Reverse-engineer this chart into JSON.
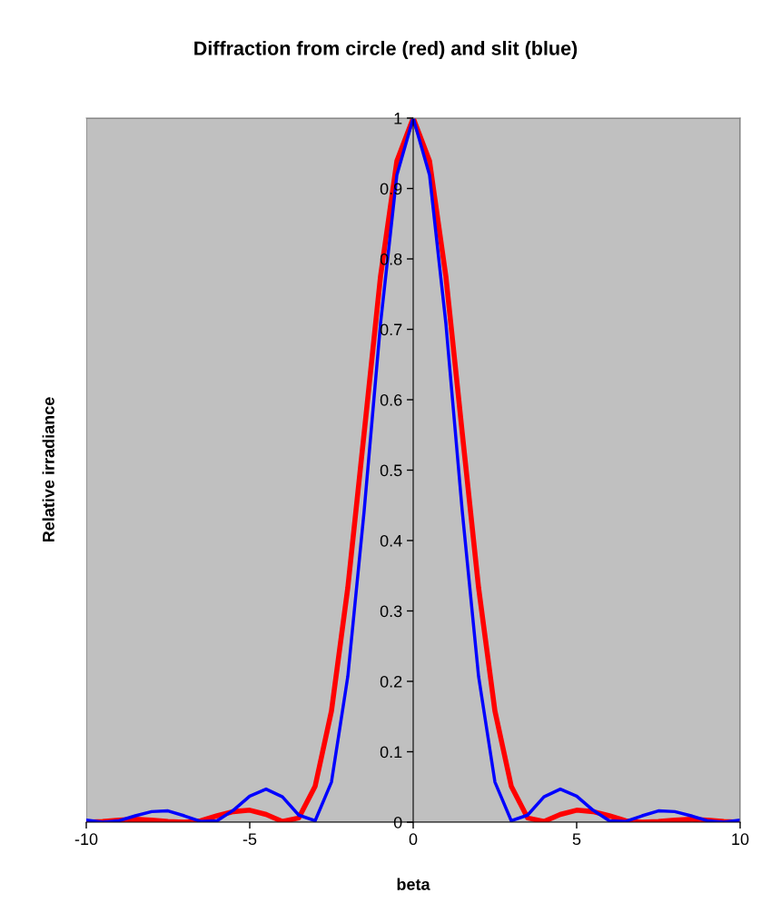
{
  "chart_data": {
    "type": "line",
    "title": "Diffraction from circle (red) and slit (blue)",
    "xlabel": "beta",
    "ylabel": "Relative irradiance",
    "x": [
      -10,
      -9.5,
      -9,
      -8.5,
      -8,
      -7.5,
      -7,
      -6.5,
      -6,
      -5.5,
      -5,
      -4.5,
      -4,
      -3.5,
      -3,
      -2.5,
      -2,
      -1.5,
      -1,
      -0.5,
      0,
      0.5,
      1,
      1.5,
      2,
      2.5,
      3,
      3.5,
      4,
      4.5,
      5,
      5.5,
      6,
      6.5,
      7,
      7.5,
      8,
      8.5,
      9,
      9.5,
      10
    ],
    "series": [
      {
        "color": "#ff0000",
        "values": [
          0,
          0.001,
          0.003,
          0.004,
          0.003,
          0.001,
          0,
          0.002,
          0.009,
          0.015,
          0.017,
          0.011,
          0.001,
          0.006,
          0.051,
          0.158,
          0.333,
          0.553,
          0.775,
          0.939,
          1,
          0.939,
          0.775,
          0.553,
          0.333,
          0.158,
          0.051,
          0.006,
          0.001,
          0.011,
          0.017,
          0.015,
          0.009,
          0.002,
          0,
          0.001,
          0.003,
          0.004,
          0.003,
          0.001,
          0
        ]
      },
      {
        "color": "#0000ff",
        "values": [
          0.003,
          0,
          0.002,
          0.009,
          0.015,
          0.016,
          0.009,
          0.001,
          0.002,
          0.017,
          0.037,
          0.047,
          0.036,
          0.01,
          0.002,
          0.057,
          0.207,
          0.442,
          0.708,
          0.919,
          1,
          0.919,
          0.708,
          0.442,
          0.207,
          0.057,
          0.002,
          0.01,
          0.036,
          0.047,
          0.037,
          0.017,
          0.002,
          0.001,
          0.009,
          0.016,
          0.015,
          0.009,
          0.002,
          0,
          0.003
        ]
      }
    ],
    "xlim": [
      -10,
      10
    ],
    "xticks": [
      -10,
      -5,
      0,
      5,
      10
    ],
    "ylim": [
      0,
      1
    ],
    "yticks": [
      0,
      0.1,
      0.2,
      0.3,
      0.4,
      0.5,
      0.6,
      0.7,
      0.8,
      0.9,
      1
    ],
    "grid": false,
    "legend": false,
    "marker": "none",
    "line_style": "solid"
  }
}
